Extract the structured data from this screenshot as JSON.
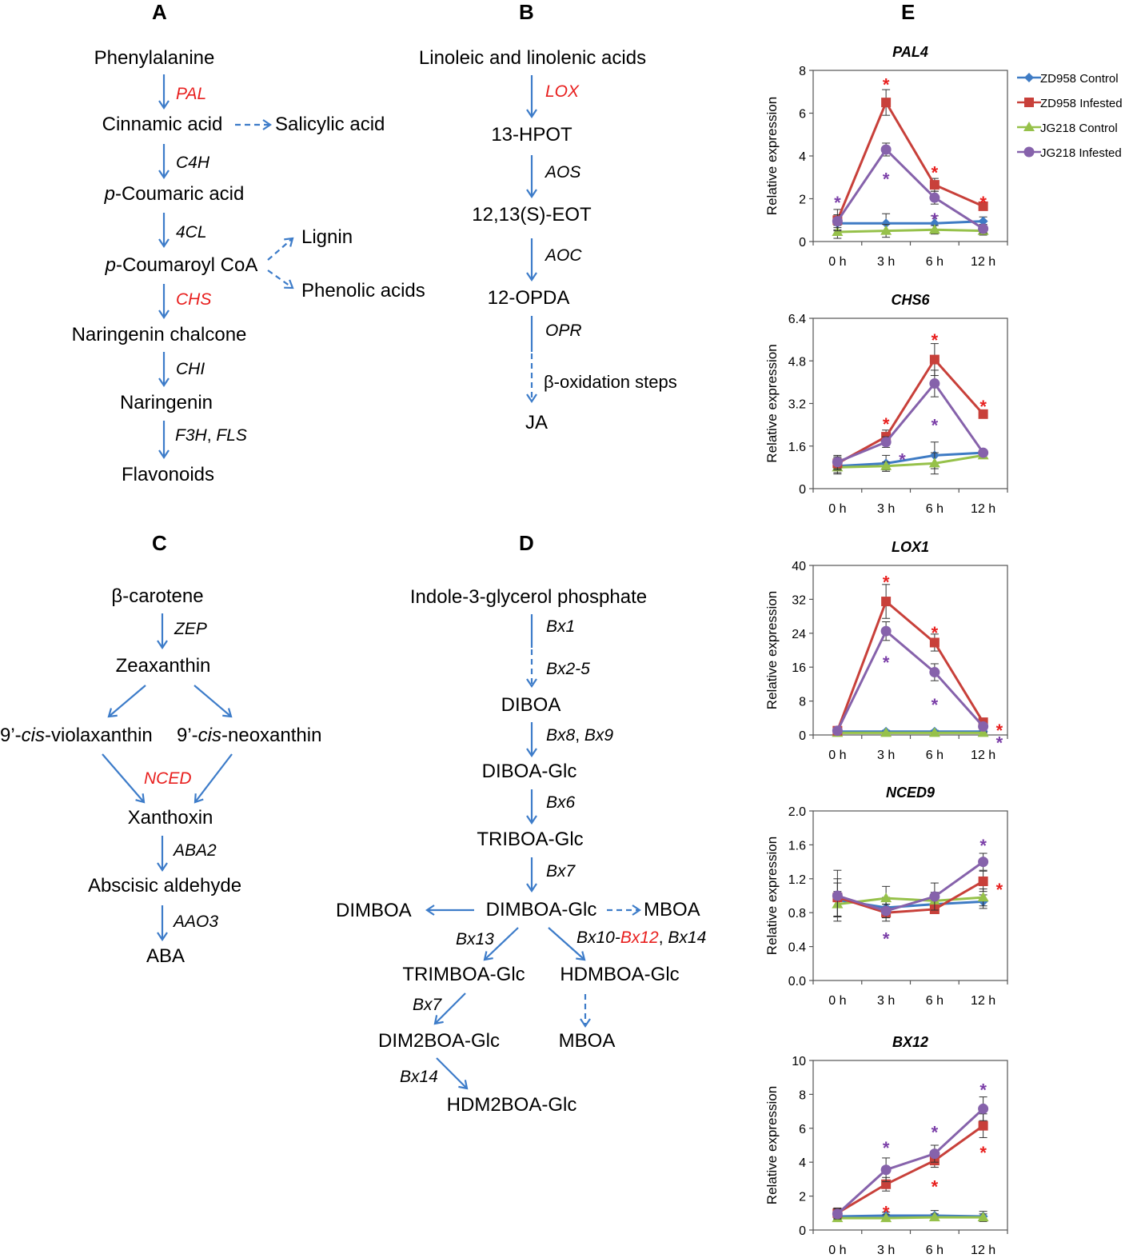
{
  "panels": {
    "A": {
      "label": "A",
      "nodes": [
        "Phenylalanine",
        "Cinnamic acid",
        "Salicylic acid",
        "-Coumaric acid",
        "-Coumaroyl CoA",
        "Lignin",
        "Phenolic acids",
        "Naringenin chalcone",
        "Naringenin",
        "Flavonoids"
      ],
      "italic_prefix": "p",
      "enzymes": [
        "PAL",
        "C4H",
        "4CL",
        "CHS",
        "CHI",
        "F3H",
        ", ",
        "FLS"
      ]
    },
    "B": {
      "label": "B",
      "nodes": [
        "Linoleic and linolenic acids",
        "13-HPOT",
        "12,13(S)-EOT",
        "12-OPDA",
        "β-oxidation steps",
        "JA"
      ],
      "enzymes": [
        "LOX",
        "AOS",
        "AOC",
        "OPR"
      ]
    },
    "C": {
      "label": "C",
      "nodes": [
        "β-carotene",
        "Zeaxanthin",
        "9’-",
        "cis",
        "-violaxanthin",
        "9’-",
        "cis",
        "-neoxanthin",
        "Xanthoxin",
        "Abscisic aldehyde",
        "ABA"
      ],
      "enzymes": [
        "ZEP",
        "NCED",
        "ABA2",
        "AAO3"
      ]
    },
    "D": {
      "label": "D",
      "nodes": [
        "Indole-3-glycerol phosphate",
        "DIBOA",
        "DIBOA-Glc",
        "TRIBOA-Glc",
        "DIMBOA-Glc",
        "DIMBOA",
        "MBOA",
        "TRIMBOA-Glc",
        "HDMBOA-Glc",
        "MBOA",
        "DIM2BOA-Glc",
        "HDM2BOA-Glc"
      ],
      "enzymes": [
        "Bx1",
        "Bx2-5",
        "Bx8",
        ", ",
        "Bx9",
        "Bx6",
        "Bx7",
        "Bx13",
        "Bx10-",
        "Bx12",
        ", ",
        "Bx14",
        "Bx7",
        "Bx14"
      ]
    },
    "E": {
      "label": "E"
    }
  },
  "colors": {
    "arrow": "#3d7cc9",
    "highlight": "#e8201f",
    "zd_control": "#3e7bc4",
    "zd_infested": "#c8403a",
    "jg_control": "#96c14a",
    "jg_infested": "#8662ab",
    "star_red": "#e8201f",
    "star_purple": "#7b3fa8"
  },
  "chart_data": [
    {
      "type": "line",
      "title": "PAL4",
      "ylabel": "Relative expression",
      "categories": [
        "0 h",
        "3 h",
        "6 h",
        "12 h"
      ],
      "ylim": [
        0,
        8
      ],
      "yticks": [
        "0",
        "2",
        "4",
        "6",
        "8"
      ],
      "series": [
        {
          "name": "ZD958 Control",
          "values": [
            0.85,
            0.85,
            0.85,
            0.95
          ],
          "err": [
            0.3,
            0.45,
            0.35,
            0.2
          ]
        },
        {
          "name": "ZD958 Infested",
          "values": [
            1.0,
            6.5,
            2.65,
            1.65
          ],
          "err": [
            0.5,
            0.6,
            0.3,
            0.15
          ]
        },
        {
          "name": "JG218 Control",
          "values": [
            0.45,
            0.5,
            0.55,
            0.5
          ],
          "err": [
            0.3,
            0.3,
            0.2,
            0.2
          ]
        },
        {
          "name": "JG218 Infested",
          "values": [
            0.95,
            4.3,
            2.05,
            0.6
          ],
          "err": [
            0.3,
            0.3,
            0.3,
            0.2
          ]
        }
      ],
      "stars": [
        {
          "index": 0,
          "series": "JG218 Infested",
          "pos": "above",
          "level": 2.1
        },
        {
          "index": 1,
          "series": "ZD958 Infested",
          "pos": "above",
          "level": 7.6
        },
        {
          "index": 1,
          "series": "JG218 Infested",
          "pos": "below",
          "level": 3.2
        },
        {
          "index": 2,
          "series": "ZD958 Infested",
          "pos": "above",
          "level": 3.5
        },
        {
          "index": 2,
          "series": "JG218 Infested",
          "pos": "above",
          "level": 1.3
        },
        {
          "index": 3,
          "series": "ZD958 Infested",
          "pos": "above",
          "level": 2.1
        }
      ]
    },
    {
      "type": "line",
      "title": "CHS6",
      "ylabel": "Relative expression",
      "categories": [
        "0 h",
        "3 h",
        "6 h",
        "12 h"
      ],
      "ylim": [
        0,
        6.4
      ],
      "yticks": [
        "0",
        "1.6",
        "3.2",
        "4.8",
        "6.4"
      ],
      "series": [
        {
          "name": "ZD958 Control",
          "values": [
            0.85,
            0.95,
            1.25,
            1.35
          ],
          "err": [
            0.3,
            0.3,
            0.5,
            0.1
          ]
        },
        {
          "name": "ZD958 Infested",
          "values": [
            0.95,
            1.95,
            4.85,
            2.8
          ],
          "err": [
            0.25,
            0.25,
            0.6,
            0.1
          ]
        },
        {
          "name": "JG218 Control",
          "values": [
            0.8,
            0.85,
            0.95,
            1.25
          ],
          "err": [
            0.2,
            0.15,
            0.4,
            0.1
          ]
        },
        {
          "name": "JG218 Infested",
          "values": [
            1.0,
            1.75,
            3.95,
            1.35
          ],
          "err": [
            0.25,
            0.2,
            0.5,
            0.1
          ]
        }
      ],
      "stars": [
        {
          "index": 1,
          "series": "ZD958 Infested",
          "pos": "above",
          "level": 2.65
        },
        {
          "index": 1,
          "series": "JG218 Infested",
          "pos": "right",
          "level": 1.3
        },
        {
          "index": 2,
          "series": "ZD958 Infested",
          "pos": "above",
          "level": 5.8
        },
        {
          "index": 2,
          "series": "JG218 Infested",
          "pos": "below",
          "level": 2.6
        },
        {
          "index": 3,
          "series": "ZD958 Infested",
          "pos": "above",
          "level": 3.3
        }
      ]
    },
    {
      "type": "line",
      "title": "LOX1",
      "ylabel": "Relative expression",
      "categories": [
        "0 h",
        "3 h",
        "6 h",
        "12 h"
      ],
      "ylim": [
        0,
        40
      ],
      "yticks": [
        "0",
        "8",
        "16",
        "24",
        "32",
        "40"
      ],
      "series": [
        {
          "name": "ZD958 Control",
          "values": [
            0.8,
            0.8,
            0.8,
            0.8
          ],
          "err": [
            0.3,
            0.3,
            0.3,
            0.3
          ]
        },
        {
          "name": "ZD958 Infested",
          "values": [
            1.0,
            31.5,
            21.8,
            3.0
          ],
          "err": [
            0.3,
            4.0,
            2.0,
            0.5
          ]
        },
        {
          "name": "JG218 Control",
          "values": [
            0.5,
            0.5,
            0.5,
            0.5
          ],
          "err": [
            0.2,
            0.2,
            0.2,
            0.2
          ]
        },
        {
          "name": "JG218 Infested",
          "values": [
            1.0,
            24.5,
            14.8,
            2.0
          ],
          "err": [
            0.3,
            2.2,
            2.0,
            0.3
          ]
        }
      ],
      "stars": [
        {
          "index": 1,
          "series": "ZD958 Infested",
          "pos": "above",
          "level": 37.5
        },
        {
          "index": 1,
          "series": "JG218 Infested",
          "pos": "below",
          "level": 18.5
        },
        {
          "index": 2,
          "series": "ZD958 Infested",
          "pos": "above",
          "level": 25.5
        },
        {
          "index": 2,
          "series": "JG218 Infested",
          "pos": "below",
          "level": 8.5
        },
        {
          "index": 3,
          "series": "ZD958 Infested",
          "pos": "right",
          "level": 2.5
        },
        {
          "index": 3,
          "series": "JG218 Infested",
          "pos": "right",
          "level": -0.5
        }
      ]
    },
    {
      "type": "line",
      "title": "NCED9",
      "ylabel": "Relative expression",
      "categories": [
        "0 h",
        "3 h",
        "6 h",
        "12 h"
      ],
      "ylim": [
        0,
        2.0
      ],
      "yticks": [
        "0.0",
        "0.4",
        "0.8",
        "1.2",
        "1.6",
        "2.0"
      ],
      "series": [
        {
          "name": "ZD958 Control",
          "values": [
            0.95,
            0.86,
            0.9,
            0.93
          ],
          "err": [
            0.2,
            0.12,
            0.1,
            0.08
          ]
        },
        {
          "name": "ZD958 Infested",
          "values": [
            0.98,
            0.8,
            0.84,
            1.17
          ],
          "err": [
            0.22,
            0.1,
            0.05,
            0.12
          ]
        },
        {
          "name": "JG218 Control",
          "values": [
            0.9,
            0.97,
            0.94,
            0.98
          ],
          "err": [
            0.15,
            0.14,
            0.1,
            0.1
          ]
        },
        {
          "name": "JG218 Infested",
          "values": [
            1.0,
            0.82,
            0.99,
            1.4
          ],
          "err": [
            0.3,
            0.08,
            0.16,
            0.1
          ]
        }
      ],
      "stars": [
        {
          "index": 1,
          "series": "JG218 Infested",
          "pos": "below",
          "level": 0.56
        },
        {
          "index": 3,
          "series": "JG218 Infested",
          "pos": "above",
          "level": 1.66
        },
        {
          "index": 3,
          "series": "ZD958 Infested",
          "pos": "right",
          "level": 1.14
        }
      ]
    },
    {
      "type": "line",
      "title": "BX12",
      "ylabel": "Relative expression",
      "categories": [
        "0 h",
        "3 h",
        "6 h",
        "12 h"
      ],
      "ylim": [
        0,
        10
      ],
      "yticks": [
        "0",
        "2",
        "4",
        "6",
        "8",
        "10"
      ],
      "series": [
        {
          "name": "ZD958 Control",
          "values": [
            0.8,
            0.85,
            0.85,
            0.8
          ],
          "err": [
            0.3,
            0.2,
            0.3,
            0.3
          ]
        },
        {
          "name": "ZD958 Infested",
          "values": [
            1.0,
            2.7,
            4.1,
            6.15
          ],
          "err": [
            0.3,
            0.4,
            0.4,
            0.7
          ]
        },
        {
          "name": "JG218 Control",
          "values": [
            0.7,
            0.7,
            0.75,
            0.75
          ],
          "err": [
            0.2,
            0.2,
            0.2,
            0.2
          ]
        },
        {
          "name": "JG218 Infested",
          "values": [
            0.95,
            3.55,
            4.5,
            7.15
          ],
          "err": [
            0.3,
            0.7,
            0.5,
            0.7
          ]
        }
      ],
      "stars": [
        {
          "index": 1,
          "series": "ZD958 Infested",
          "pos": "below",
          "level": 1.4
        },
        {
          "index": 1,
          "series": "JG218 Infested",
          "pos": "above",
          "level": 5.2
        },
        {
          "index": 2,
          "series": "ZD958 Infested",
          "pos": "below",
          "level": 2.9
        },
        {
          "index": 2,
          "series": "JG218 Infested",
          "pos": "above",
          "level": 6.1
        },
        {
          "index": 3,
          "series": "ZD958 Infested",
          "pos": "below",
          "level": 4.9
        },
        {
          "index": 3,
          "series": "JG218 Infested",
          "pos": "above",
          "level": 8.6
        }
      ]
    }
  ],
  "legend": [
    "ZD958 Control",
    "ZD958 Infested",
    "JG218 Control",
    "JG218 Infested"
  ]
}
